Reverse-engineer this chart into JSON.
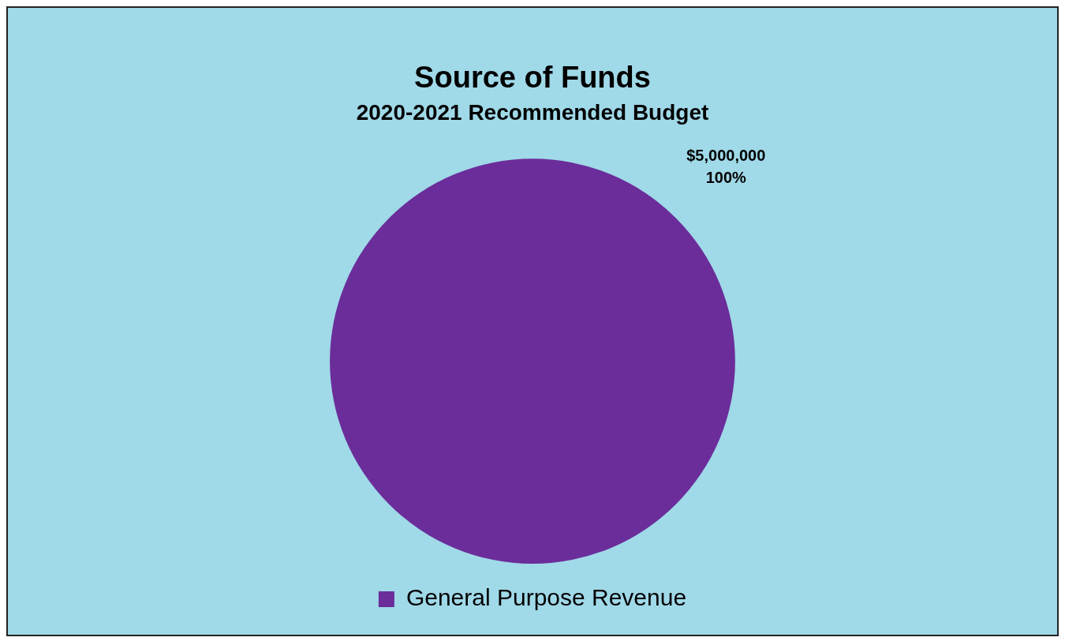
{
  "chart_data": {
    "type": "pie",
    "title": "Source of Funds",
    "subtitle": "2020-2021 Recommended Budget",
    "categories": [
      "General Purpose Revenue"
    ],
    "values": [
      100
    ],
    "colors": [
      "#6b2d9a"
    ],
    "value_labels": [
      "$5,000,000\n100%"
    ],
    "legend": "bottom"
  }
}
